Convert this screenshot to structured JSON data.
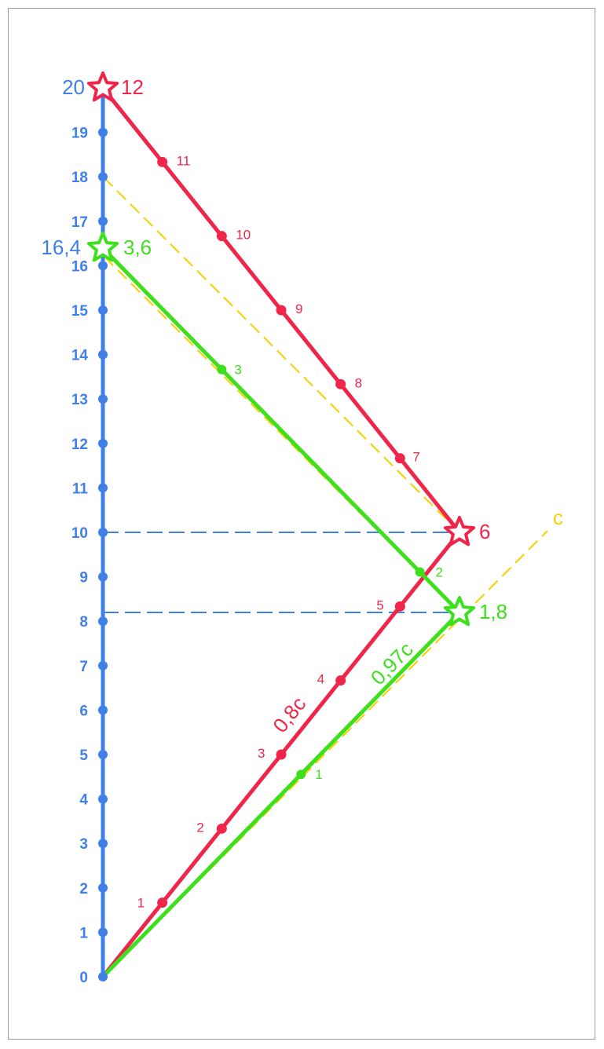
{
  "colors": {
    "blue": "#3f7fe8",
    "red": "#f0254a",
    "green": "#3ee01e",
    "yellow": "#f4d000"
  },
  "axis": {
    "ticks": [
      "0",
      "1",
      "2",
      "3",
      "4",
      "5",
      "6",
      "7",
      "8",
      "9",
      "10",
      "11",
      "12",
      "13",
      "14",
      "15",
      "16",
      "17",
      "18",
      "19",
      "20"
    ],
    "top_label": "20",
    "mid_label": "16,4"
  },
  "red_traveler": {
    "steps": [
      "1",
      "2",
      "3",
      "4",
      "5",
      "6",
      "7",
      "8",
      "9",
      "10",
      "11",
      "12"
    ],
    "turn_label": "6",
    "end_label": "12",
    "speed_label": "0,8c"
  },
  "green_traveler": {
    "steps": [
      "1",
      "2",
      "3"
    ],
    "turn_label": "1,8",
    "end_label": "3,6",
    "speed_label": "0,97c"
  },
  "light_label": "c",
  "reference_lines": {
    "upper": "10",
    "lower": "8,2"
  }
}
